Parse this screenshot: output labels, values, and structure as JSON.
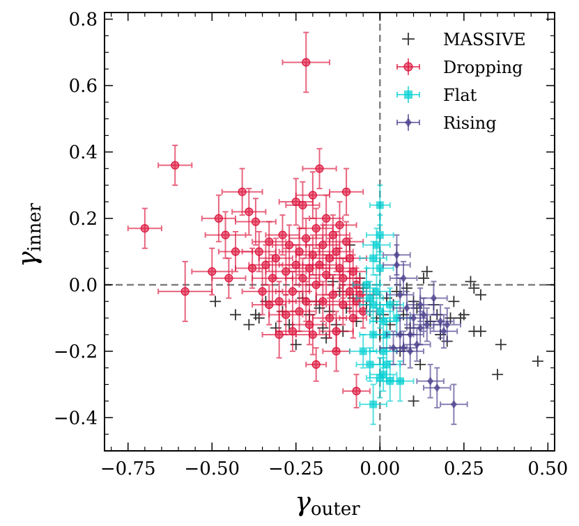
{
  "chart_data": {
    "type": "scatter",
    "xlabel": "γouter",
    "xlabel_main": "γ",
    "xlabel_sub": "outer",
    "ylabel": "γinner",
    "ylabel_main": "γ",
    "ylabel_sub": "inner",
    "xlim": [
      -0.82,
      0.52
    ],
    "ylim": [
      -0.5,
      0.82
    ],
    "xticks": [
      -0.75,
      -0.5,
      -0.25,
      0.0,
      0.25,
      0.5
    ],
    "xtick_labels": [
      "−0.75",
      "−0.50",
      "−0.25",
      "0.00",
      "0.25",
      "0.50"
    ],
    "yticks": [
      -0.4,
      -0.2,
      0.0,
      0.2,
      0.4,
      0.6,
      0.8
    ],
    "ytick_labels": [
      "−0.4",
      "−0.2",
      "0.0",
      "0.2",
      "0.4",
      "0.6",
      "0.8"
    ],
    "reference_lines": {
      "x": 0.0,
      "y": 0.0,
      "style": "dashed",
      "color": "#7f7f7f"
    },
    "legend_position": "top-right",
    "legend": [
      {
        "name": "MASSIVE",
        "marker": "plus",
        "color": "#333333"
      },
      {
        "name": "Dropping",
        "marker": "circle",
        "color": "#dc143c"
      },
      {
        "name": "Flat",
        "marker": "square",
        "color": "#00ced1"
      },
      {
        "name": "Rising",
        "marker": "diamond",
        "color": "#483d8b"
      }
    ],
    "series": [
      {
        "name": "MASSIVE",
        "marker": "plus",
        "color": "#333333",
        "points": [
          [
            -0.49,
            -0.05
          ],
          [
            -0.43,
            -0.09
          ],
          [
            -0.39,
            -0.12
          ],
          [
            -0.37,
            -0.09
          ],
          [
            -0.36,
            -0.1
          ],
          [
            -0.34,
            -0.05
          ],
          [
            -0.31,
            -0.13
          ],
          [
            -0.29,
            -0.08
          ],
          [
            -0.27,
            -0.12
          ],
          [
            -0.25,
            -0.18
          ],
          [
            -0.23,
            -0.04
          ],
          [
            -0.21,
            -0.09
          ],
          [
            -0.19,
            -0.05
          ],
          [
            -0.18,
            -0.07
          ],
          [
            -0.17,
            -0.13
          ],
          [
            -0.16,
            -0.16
          ],
          [
            -0.15,
            -0.08
          ],
          [
            -0.14,
            0.01
          ],
          [
            -0.13,
            -0.12
          ],
          [
            -0.12,
            -0.02
          ],
          [
            -0.11,
            -0.14
          ],
          [
            -0.1,
            -0.07
          ],
          [
            -0.09,
            0.12
          ],
          [
            -0.08,
            -0.04
          ],
          [
            -0.07,
            -0.11
          ],
          [
            -0.06,
            0.02
          ],
          [
            -0.05,
            -0.01
          ],
          [
            -0.04,
            -0.06
          ],
          [
            -0.03,
            -0.08
          ],
          [
            -0.02,
            -0.03
          ],
          [
            -0.01,
            -0.1
          ],
          [
            0.0,
            -0.15
          ],
          [
            0.01,
            -0.09
          ],
          [
            0.02,
            -0.04
          ],
          [
            0.03,
            -0.12
          ],
          [
            0.04,
            -0.06
          ],
          [
            0.05,
            -0.02
          ],
          [
            0.06,
            -0.2
          ],
          [
            0.07,
            -0.09
          ],
          [
            0.08,
            -0.01
          ],
          [
            0.09,
            -0.13
          ],
          [
            0.1,
            -0.05
          ],
          [
            0.1,
            -0.35
          ],
          [
            0.11,
            -0.07
          ],
          [
            0.12,
            -0.24
          ],
          [
            0.13,
            0.02
          ],
          [
            0.14,
            0.04
          ],
          [
            0.15,
            -0.11
          ],
          [
            0.16,
            -0.06
          ],
          [
            0.17,
            -0.09
          ],
          [
            0.18,
            -0.15
          ],
          [
            0.2,
            -0.17
          ],
          [
            0.21,
            -0.1
          ],
          [
            0.22,
            -0.05
          ],
          [
            0.24,
            -0.1
          ],
          [
            0.25,
            -0.09
          ],
          [
            0.27,
            0.01
          ],
          [
            0.28,
            -0.01
          ],
          [
            0.28,
            -0.14
          ],
          [
            0.3,
            -0.14
          ],
          [
            0.3,
            -0.03
          ],
          [
            0.35,
            -0.27
          ],
          [
            0.36,
            -0.18
          ],
          [
            0.47,
            -0.23
          ]
        ]
      },
      {
        "name": "Dropping",
        "marker": "circle",
        "color": "#dc143c",
        "points": [
          [
            -0.22,
            0.67,
            0.07,
            0.09
          ],
          [
            -0.7,
            0.17,
            0.05,
            0.06
          ],
          [
            -0.61,
            0.36,
            0.05,
            0.06
          ],
          [
            -0.58,
            -0.02,
            0.08,
            0.09
          ],
          [
            -0.5,
            0.04,
            0.06,
            0.07
          ],
          [
            -0.48,
            0.2,
            0.05,
            0.07
          ],
          [
            -0.46,
            0.15,
            0.06,
            0.07
          ],
          [
            -0.45,
            0.02,
            0.05,
            0.06
          ],
          [
            -0.43,
            0.1,
            0.05,
            0.06
          ],
          [
            -0.41,
            0.28,
            0.06,
            0.07
          ],
          [
            -0.39,
            0.22,
            0.05,
            0.07
          ],
          [
            -0.38,
            0.05,
            0.05,
            0.06
          ],
          [
            -0.37,
            0.19,
            0.06,
            0.07
          ],
          [
            -0.36,
            0.1,
            0.05,
            0.06
          ],
          [
            -0.35,
            -0.02,
            0.06,
            0.07
          ],
          [
            -0.34,
            0.06,
            0.05,
            0.06
          ],
          [
            -0.33,
            0.13,
            0.05,
            0.06
          ],
          [
            -0.32,
            0.02,
            0.06,
            0.07
          ],
          [
            -0.31,
            0.08,
            0.05,
            0.06
          ],
          [
            -0.3,
            -0.05,
            0.05,
            0.06
          ],
          [
            -0.3,
            -0.15,
            0.05,
            0.07
          ],
          [
            -0.29,
            0.15,
            0.05,
            0.06
          ],
          [
            -0.28,
            0.04,
            0.06,
            0.07
          ],
          [
            -0.27,
            0.12,
            0.05,
            0.06
          ],
          [
            -0.26,
            -0.02,
            0.05,
            0.06
          ],
          [
            -0.25,
            0.25,
            0.05,
            0.07
          ],
          [
            -0.25,
            0.06,
            0.05,
            0.06
          ],
          [
            -0.24,
            0.1,
            0.06,
            0.07
          ],
          [
            -0.24,
            -0.08,
            0.05,
            0.06
          ],
          [
            -0.23,
            0.24,
            0.05,
            0.07
          ],
          [
            -0.23,
            0.02,
            0.05,
            0.06
          ],
          [
            -0.22,
            0.14,
            0.05,
            0.06
          ],
          [
            -0.21,
            0.05,
            0.06,
            0.07
          ],
          [
            -0.21,
            -0.12,
            0.05,
            0.06
          ],
          [
            -0.2,
            0.27,
            0.05,
            0.07
          ],
          [
            -0.2,
            0.09,
            0.05,
            0.06
          ],
          [
            -0.19,
            0.0,
            0.05,
            0.06
          ],
          [
            -0.19,
            0.17,
            0.05,
            0.06
          ],
          [
            -0.18,
            0.35,
            0.05,
            0.06
          ],
          [
            -0.18,
            0.06,
            0.05,
            0.06
          ],
          [
            -0.17,
            -0.05,
            0.05,
            0.06
          ],
          [
            -0.17,
            0.12,
            0.05,
            0.06
          ],
          [
            -0.16,
            0.2,
            0.05,
            0.07
          ],
          [
            -0.16,
            0.03,
            0.05,
            0.06
          ],
          [
            -0.15,
            -0.1,
            0.05,
            0.06
          ],
          [
            -0.15,
            0.08,
            0.05,
            0.06
          ],
          [
            -0.14,
            0.15,
            0.05,
            0.06
          ],
          [
            -0.14,
            -0.03,
            0.05,
            0.06
          ],
          [
            -0.13,
            0.1,
            0.05,
            0.06
          ],
          [
            -0.13,
            -0.14,
            0.05,
            0.06
          ],
          [
            -0.12,
            0.05,
            0.05,
            0.06
          ],
          [
            -0.12,
            0.18,
            0.05,
            0.07
          ],
          [
            -0.11,
            -0.06,
            0.05,
            0.06
          ],
          [
            -0.11,
            0.02,
            0.05,
            0.06
          ],
          [
            -0.1,
            0.28,
            0.05,
            0.07
          ],
          [
            -0.1,
            0.13,
            0.05,
            0.06
          ],
          [
            -0.09,
            -0.02,
            0.05,
            0.06
          ],
          [
            -0.09,
            0.08,
            0.05,
            0.06
          ],
          [
            -0.08,
            -0.1,
            0.04,
            0.06
          ],
          [
            -0.08,
            0.04,
            0.04,
            0.05
          ],
          [
            -0.07,
            -0.05,
            0.04,
            0.05
          ],
          [
            -0.07,
            0.0,
            0.04,
            0.05
          ],
          [
            -0.06,
            -0.03,
            0.04,
            0.05
          ],
          [
            -0.05,
            -0.08,
            0.04,
            0.05
          ],
          [
            -0.19,
            -0.24,
            0.03,
            0.05
          ],
          [
            -0.07,
            -0.32,
            0.04,
            0.05
          ],
          [
            -0.26,
            -0.14,
            0.05,
            0.06
          ],
          [
            -0.28,
            -0.09,
            0.05,
            0.06
          ],
          [
            -0.33,
            -0.06,
            0.05,
            0.06
          ],
          [
            -0.22,
            -0.05,
            0.05,
            0.06
          ],
          [
            -0.2,
            -0.15,
            0.05,
            0.06
          ],
          [
            -0.13,
            -0.2,
            0.04,
            0.06
          ]
        ]
      },
      {
        "name": "Flat",
        "marker": "square",
        "color": "#00ced1",
        "points": [
          [
            0.0,
            0.24,
            0.03,
            0.06
          ],
          [
            0.0,
            0.15,
            0.04,
            0.06
          ],
          [
            -0.01,
            0.12,
            0.04,
            0.05
          ],
          [
            0.0,
            0.05,
            0.04,
            0.05
          ],
          [
            -0.02,
            0.08,
            0.04,
            0.05
          ],
          [
            -0.04,
            0.0,
            0.04,
            0.05
          ],
          [
            -0.03,
            -0.04,
            0.04,
            0.05
          ],
          [
            -0.02,
            -0.06,
            0.04,
            0.05
          ],
          [
            -0.01,
            -0.02,
            0.04,
            0.05
          ],
          [
            0.0,
            -0.08,
            0.04,
            0.05
          ],
          [
            0.01,
            -0.11,
            0.04,
            0.05
          ],
          [
            0.02,
            -0.15,
            0.04,
            0.05
          ],
          [
            -0.02,
            -0.15,
            0.04,
            0.05
          ],
          [
            0.01,
            -0.2,
            0.04,
            0.05
          ],
          [
            0.02,
            -0.24,
            0.04,
            0.05
          ],
          [
            0.01,
            -0.27,
            0.04,
            0.05
          ],
          [
            0.03,
            -0.29,
            0.04,
            0.06
          ],
          [
            0.06,
            -0.29,
            0.04,
            0.06
          ],
          [
            0.0,
            -0.28,
            0.04,
            0.06
          ],
          [
            -0.03,
            -0.24,
            0.04,
            0.05
          ],
          [
            -0.05,
            -0.2,
            0.04,
            0.05
          ],
          [
            0.03,
            -0.06,
            0.04,
            0.05
          ],
          [
            0.05,
            -0.1,
            0.04,
            0.05
          ],
          [
            -0.02,
            -0.36,
            0.04,
            0.06
          ]
        ]
      },
      {
        "name": "Rising",
        "marker": "diamond",
        "color": "#483d8b",
        "points": [
          [
            0.05,
            0.09,
            0.04,
            0.06
          ],
          [
            0.05,
            0.06,
            0.04,
            0.06
          ],
          [
            0.07,
            0.02,
            0.04,
            0.05
          ],
          [
            0.06,
            -0.03,
            0.04,
            0.05
          ],
          [
            0.08,
            -0.07,
            0.04,
            0.05
          ],
          [
            0.1,
            -0.1,
            0.04,
            0.05
          ],
          [
            0.09,
            -0.15,
            0.04,
            0.05
          ],
          [
            0.11,
            -0.18,
            0.04,
            0.05
          ],
          [
            0.07,
            -0.19,
            0.04,
            0.05
          ],
          [
            0.06,
            -0.15,
            0.04,
            0.05
          ],
          [
            0.12,
            -0.13,
            0.04,
            0.05
          ],
          [
            0.14,
            -0.12,
            0.04,
            0.05
          ],
          [
            0.13,
            -0.09,
            0.04,
            0.05
          ],
          [
            0.16,
            -0.04,
            0.04,
            0.05
          ],
          [
            0.18,
            -0.11,
            0.04,
            0.05
          ],
          [
            0.19,
            -0.14,
            0.04,
            0.05
          ],
          [
            0.2,
            -0.12,
            0.04,
            0.05
          ],
          [
            0.15,
            -0.29,
            0.04,
            0.05
          ],
          [
            0.17,
            -0.31,
            0.04,
            0.06
          ],
          [
            0.22,
            -0.36,
            0.04,
            0.06
          ],
          [
            0.09,
            -0.2,
            0.04,
            0.05
          ],
          [
            0.12,
            -0.06,
            0.04,
            0.05
          ],
          [
            0.04,
            -0.19,
            0.04,
            0.05
          ]
        ]
      }
    ]
  }
}
